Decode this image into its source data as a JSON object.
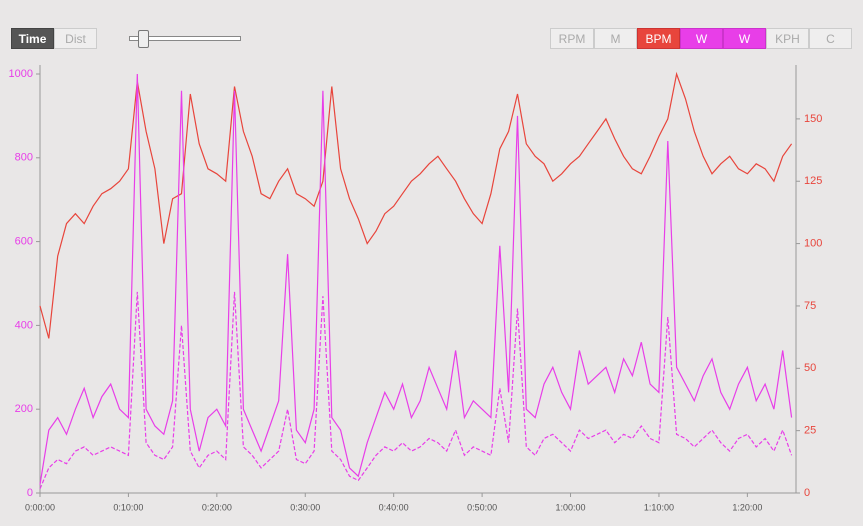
{
  "toolbar": {
    "mode_buttons": [
      "Time",
      "Dist"
    ],
    "series_buttons": [
      "RPM",
      "M",
      "BPM",
      "W",
      "W",
      "KPH",
      "C"
    ]
  },
  "chart_data": {
    "type": "line",
    "x": [
      0,
      1,
      2,
      3,
      4,
      5,
      6,
      7,
      8,
      9,
      10,
      11,
      12,
      13,
      14,
      15,
      16,
      17,
      18,
      19,
      20,
      21,
      22,
      23,
      24,
      25,
      26,
      27,
      28,
      29,
      30,
      31,
      32,
      33,
      34,
      35,
      36,
      37,
      38,
      39,
      40,
      41,
      42,
      43,
      44,
      45,
      46,
      47,
      48,
      49,
      50,
      51,
      52,
      53,
      54,
      55,
      56,
      57,
      58,
      59,
      60,
      61,
      62,
      63,
      64,
      65,
      66,
      67,
      68,
      69,
      70,
      71,
      72,
      73,
      74,
      75,
      76,
      77,
      78,
      79,
      80,
      81,
      82,
      83,
      84,
      85
    ],
    "series": [
      {
        "color": "#e8453c",
        "axis": "y2",
        "dashed": false,
        "values": [
          75,
          62,
          95,
          108,
          112,
          108,
          115,
          120,
          122,
          125,
          130,
          165,
          145,
          130,
          100,
          118,
          120,
          160,
          140,
          130,
          128,
          125,
          163,
          145,
          135,
          120,
          118,
          125,
          130,
          120,
          118,
          115,
          125,
          163,
          130,
          118,
          110,
          100,
          105,
          112,
          115,
          120,
          125,
          128,
          132,
          135,
          130,
          125,
          118,
          112,
          108,
          120,
          138,
          145,
          160,
          140,
          135,
          132,
          125,
          128,
          132,
          135,
          140,
          145,
          150,
          142,
          135,
          130,
          128,
          135,
          143,
          150,
          168,
          158,
          145,
          135,
          128,
          132,
          135,
          130,
          128,
          132,
          130,
          125,
          135,
          140
        ]
      },
      {
        "color": "#e83ee8",
        "dashed": false,
        "values": [
          20,
          150,
          180,
          140,
          200,
          250,
          180,
          230,
          260,
          200,
          180,
          1000,
          200,
          160,
          140,
          220,
          960,
          200,
          100,
          180,
          200,
          160,
          960,
          200,
          150,
          100,
          160,
          220,
          570,
          150,
          120,
          200,
          960,
          180,
          150,
          60,
          40,
          120,
          180,
          240,
          200,
          260,
          180,
          220,
          300,
          250,
          200,
          340,
          180,
          220,
          200,
          180,
          590,
          240,
          900,
          200,
          180,
          260,
          300,
          240,
          200,
          340,
          260,
          280,
          300,
          240,
          320,
          280,
          360,
          260,
          240,
          840,
          300,
          260,
          220,
          280,
          320,
          240,
          200,
          260,
          300,
          220,
          260,
          200,
          340,
          180
        ]
      },
      {
        "color": "#e83ee8",
        "dashed": true,
        "values": [
          10,
          60,
          80,
          70,
          100,
          110,
          90,
          100,
          110,
          100,
          90,
          480,
          120,
          90,
          80,
          110,
          400,
          100,
          60,
          90,
          100,
          80,
          480,
          110,
          90,
          60,
          80,
          100,
          200,
          80,
          70,
          100,
          470,
          100,
          80,
          40,
          30,
          60,
          90,
          110,
          100,
          120,
          100,
          110,
          130,
          120,
          100,
          150,
          90,
          110,
          100,
          90,
          250,
          120,
          440,
          110,
          90,
          130,
          140,
          120,
          100,
          150,
          130,
          140,
          150,
          120,
          140,
          130,
          160,
          130,
          120,
          420,
          140,
          130,
          110,
          130,
          150,
          120,
          100,
          130,
          140,
          110,
          130,
          100,
          150,
          90
        ]
      }
    ],
    "xlim": [
      0,
      85.5
    ],
    "xticks": [
      {
        "value": 0,
        "label": "0:00:00"
      },
      {
        "value": 10,
        "label": "0:10:00"
      },
      {
        "value": 20,
        "label": "0:20:00"
      },
      {
        "value": 30,
        "label": "0:30:00"
      },
      {
        "value": 40,
        "label": "0:40:00"
      },
      {
        "value": 50,
        "label": "0:50:00"
      },
      {
        "value": 60,
        "label": "1:00:00"
      },
      {
        "value": 70,
        "label": "1:10:00"
      },
      {
        "value": 80,
        "label": "1:20:00"
      }
    ],
    "ylim": [
      0,
      1000
    ],
    "yticks": [
      0,
      200,
      400,
      600,
      800,
      1000
    ],
    "ycolor": "#e83ee8",
    "y2lim": [
      0,
      168
    ],
    "y2ticks": [
      0,
      25,
      50,
      75,
      100,
      125,
      150
    ],
    "y2color": "#e8453c"
  }
}
